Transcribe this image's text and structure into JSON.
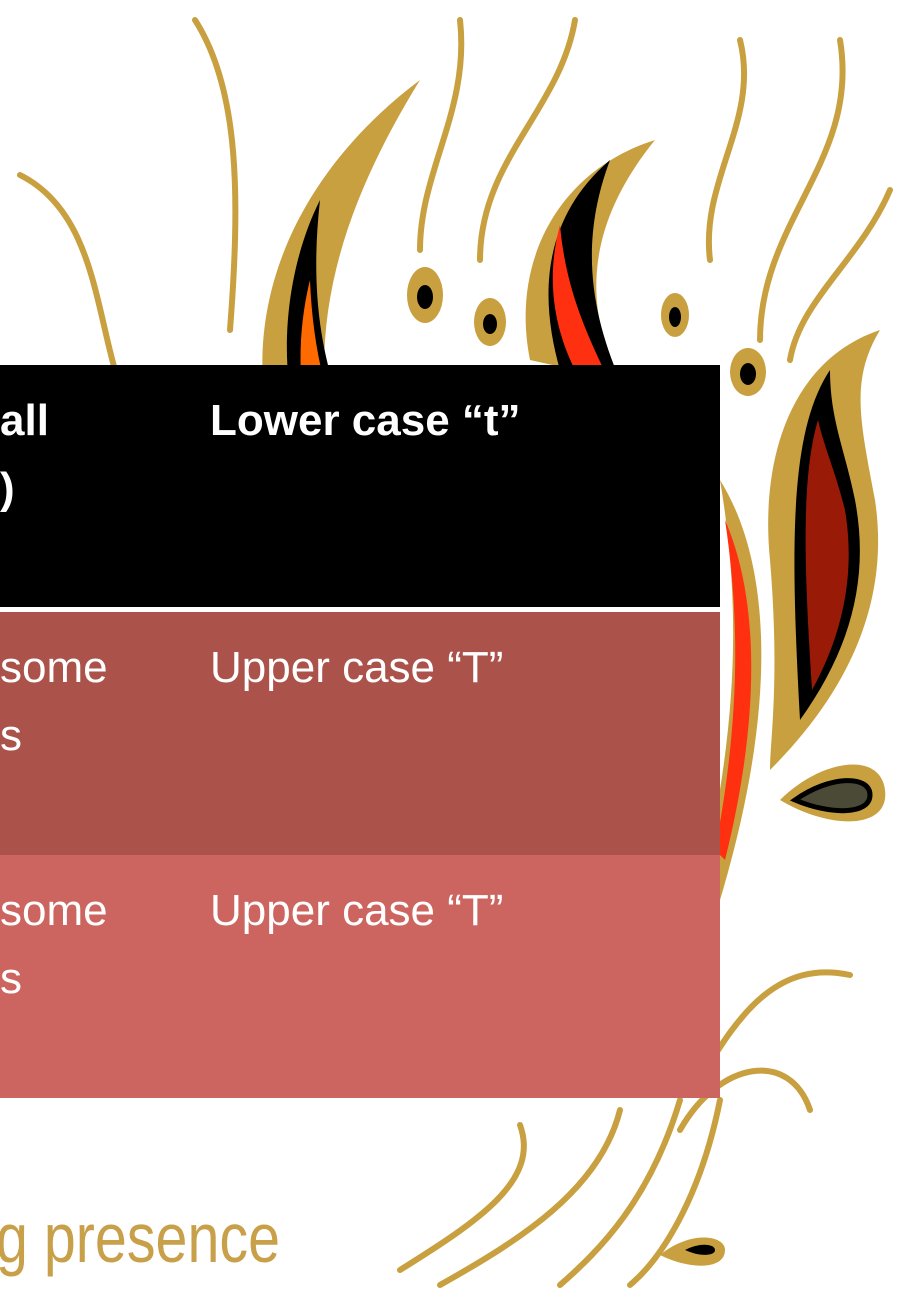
{
  "table": {
    "header": [
      [
        "all",
        ")"
      ],
      [
        "Lower case “t”"
      ]
    ],
    "rows": [
      [
        [
          "some",
          "s"
        ],
        [
          "Upper case “T”"
        ]
      ],
      [
        [
          "some",
          "s"
        ],
        [
          "Upper case “T”"
        ]
      ]
    ]
  },
  "footer": "g presence"
}
